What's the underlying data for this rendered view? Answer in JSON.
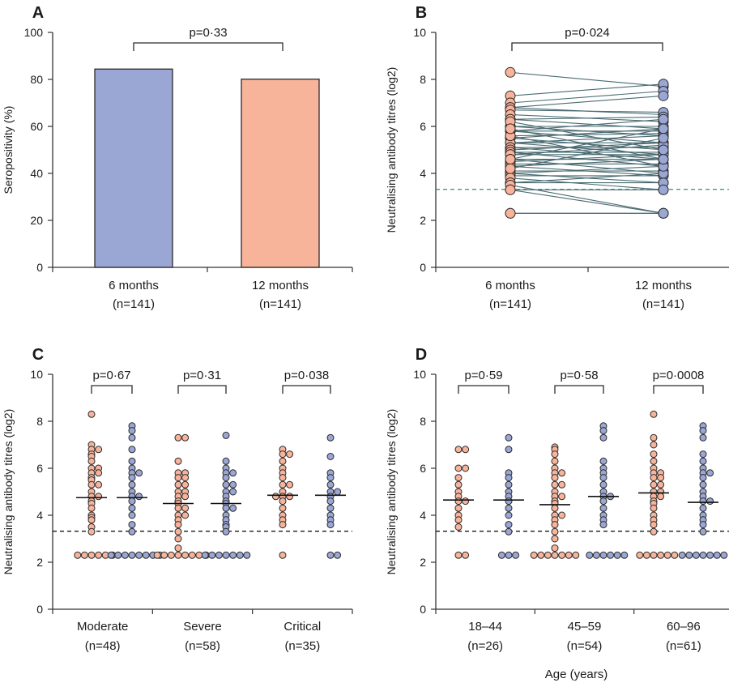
{
  "colors": {
    "blue": "#9aa6d3",
    "salmon": "#f8b39b",
    "line": "#4a6b72",
    "dash": "#3d8a6e",
    "axis": "#333333",
    "stroke": "#2b2b2b"
  },
  "chart_data": [
    {
      "panel": "A",
      "type": "bar",
      "ylabel": "Seropositivity (%)",
      "ylim": [
        0,
        100
      ],
      "yticks": [
        "0",
        "20",
        "40",
        "60",
        "80",
        "100"
      ],
      "categories": [
        {
          "name": "6 months",
          "n": "(n=141)",
          "value": 84.4,
          "color": "blue"
        },
        {
          "name": "12 months",
          "n": "(n=141)",
          "value": 80.1,
          "color": "salmon"
        }
      ],
      "pvalues": [
        "p=0·33"
      ]
    },
    {
      "panel": "B",
      "type": "line",
      "ylabel": "Neutralising antibody titres (log2)",
      "ylim": [
        0,
        10
      ],
      "yticks": [
        "0",
        "2",
        "4",
        "6",
        "8",
        "10"
      ],
      "threshold": 3.32,
      "categories": [
        {
          "name": "6 months",
          "n": "(n=141)",
          "color": "salmon"
        },
        {
          "name": "12 months",
          "n": "(n=141)",
          "color": "blue"
        }
      ],
      "pvalues": [
        "p=0·024"
      ],
      "pairs": [
        [
          8.3,
          7.7
        ],
        [
          7.3,
          7.8
        ],
        [
          7.0,
          7.5
        ],
        [
          6.8,
          7.3
        ],
        [
          6.8,
          6.5
        ],
        [
          6.7,
          6.6
        ],
        [
          6.5,
          6.2
        ],
        [
          6.3,
          6.4
        ],
        [
          6.3,
          5.9
        ],
        [
          6.0,
          6.0
        ],
        [
          6.0,
          5.6
        ],
        [
          5.8,
          5.8
        ],
        [
          5.8,
          5.3
        ],
        [
          5.8,
          6.3
        ],
        [
          5.6,
          5.7
        ],
        [
          5.5,
          5.0
        ],
        [
          5.5,
          5.9
        ],
        [
          5.3,
          5.3
        ],
        [
          5.3,
          4.8
        ],
        [
          5.3,
          5.6
        ],
        [
          5.1,
          5.1
        ],
        [
          5.1,
          4.6
        ],
        [
          5.0,
          5.3
        ],
        [
          4.9,
          4.9
        ],
        [
          4.9,
          4.3
        ],
        [
          4.8,
          4.8
        ],
        [
          4.8,
          5.2
        ],
        [
          4.6,
          4.6
        ],
        [
          4.6,
          4.0
        ],
        [
          4.5,
          4.8
        ],
        [
          4.4,
          4.4
        ],
        [
          4.3,
          3.9
        ],
        [
          4.3,
          4.6
        ],
        [
          4.1,
          4.1
        ],
        [
          4.0,
          3.6
        ],
        [
          4.0,
          4.3
        ],
        [
          3.9,
          3.9
        ],
        [
          3.8,
          3.3
        ],
        [
          3.6,
          3.6
        ],
        [
          3.6,
          4.0
        ],
        [
          3.5,
          2.3
        ],
        [
          3.3,
          3.3
        ],
        [
          3.3,
          2.3
        ],
        [
          2.3,
          2.3
        ],
        [
          2.3,
          2.3
        ],
        [
          5.6,
          4.3
        ],
        [
          4.6,
          5.9
        ],
        [
          6.2,
          5.0
        ],
        [
          4.2,
          5.5
        ],
        [
          5.9,
          4.6
        ]
      ]
    },
    {
      "panel": "C",
      "type": "scatter",
      "ylabel": "Neutralising antibody titres (log2)",
      "ylim": [
        0,
        10
      ],
      "yticks": [
        "0",
        "2",
        "4",
        "6",
        "8",
        "10"
      ],
      "threshold": 3.32,
      "groups": [
        {
          "name": "Moderate",
          "n": "(n=48)",
          "p": "p=0·67",
          "medians": [
            4.75,
            4.75
          ],
          "a": [
            8.3,
            7.0,
            6.8,
            6.8,
            6.6,
            6.5,
            6.3,
            6.0,
            6.0,
            5.8,
            5.8,
            5.6,
            5.5,
            5.3,
            5.3,
            5.0,
            4.8,
            4.8,
            4.6,
            4.5,
            4.3,
            4.0,
            3.9,
            3.8,
            3.5,
            3.3,
            2.3,
            2.3,
            2.3,
            2.3,
            2.3,
            2.3
          ],
          "b": [
            7.8,
            7.6,
            7.3,
            6.8,
            6.3,
            6.0,
            5.8,
            5.8,
            5.6,
            5.3,
            5.0,
            4.8,
            4.8,
            4.6,
            4.3,
            4.0,
            3.6,
            3.3,
            2.3,
            2.3,
            2.3,
            2.3,
            2.3,
            2.3,
            2.3,
            2.3
          ]
        },
        {
          "name": "Severe",
          "n": "(n=58)",
          "p": "p=0·31",
          "medians": [
            4.5,
            4.5
          ],
          "a": [
            7.3,
            7.3,
            6.3,
            5.8,
            5.8,
            5.6,
            5.6,
            5.3,
            5.3,
            5.0,
            5.0,
            4.8,
            4.8,
            4.6,
            4.5,
            4.3,
            4.3,
            4.0,
            4.0,
            3.8,
            3.6,
            3.3,
            3.0,
            2.6,
            2.3,
            2.3,
            2.3,
            2.3,
            2.3,
            2.3,
            2.3,
            2.3
          ],
          "b": [
            7.4,
            6.3,
            6.0,
            5.8,
            5.8,
            5.6,
            5.3,
            5.3,
            5.0,
            5.0,
            4.8,
            4.6,
            4.5,
            4.3,
            4.3,
            4.0,
            3.8,
            3.6,
            3.5,
            3.3,
            2.3,
            2.3,
            2.3,
            2.3,
            2.3,
            2.3,
            2.3
          ]
        },
        {
          "name": "Critical",
          "n": "(n=35)",
          "p": "p=0·038",
          "medians": [
            4.85,
            4.85
          ],
          "a": [
            6.8,
            6.6,
            6.6,
            6.3,
            6.0,
            5.8,
            5.6,
            5.3,
            5.3,
            5.0,
            4.8,
            4.8,
            4.8,
            4.6,
            4.3,
            4.0,
            3.8,
            3.6,
            2.3
          ],
          "b": [
            7.3,
            6.5,
            5.8,
            5.6,
            5.3,
            5.0,
            5.0,
            4.8,
            4.6,
            4.3,
            4.0,
            3.8,
            3.6,
            2.3,
            2.3
          ]
        }
      ]
    },
    {
      "panel": "D",
      "type": "scatter",
      "ylabel": "Neutralising antibody titres (log2)",
      "xlabel": "Age (years)",
      "ylim": [
        0,
        10
      ],
      "yticks": [
        "0",
        "2",
        "4",
        "6",
        "8",
        "10"
      ],
      "threshold": 3.32,
      "groups": [
        {
          "name": "18–44",
          "n": "(n=26)",
          "p": "p=0·59",
          "medians": [
            4.65,
            4.65
          ],
          "a": [
            6.8,
            6.8,
            6.0,
            6.0,
            5.6,
            5.3,
            5.0,
            4.8,
            4.6,
            4.6,
            4.3,
            4.0,
            3.8,
            3.5,
            2.3,
            2.3
          ],
          "b": [
            7.3,
            6.8,
            5.8,
            5.6,
            5.3,
            5.0,
            4.8,
            4.6,
            4.3,
            4.0,
            3.6,
            3.3,
            2.3,
            2.3,
            2.3
          ]
        },
        {
          "name": "45–59",
          "n": "(n=54)",
          "p": "p=0·58",
          "medians": [
            4.45,
            4.8
          ],
          "a": [
            6.9,
            6.8,
            6.6,
            6.3,
            6.0,
            5.8,
            5.8,
            5.6,
            5.3,
            5.3,
            5.0,
            4.8,
            4.8,
            4.6,
            4.5,
            4.3,
            4.0,
            4.0,
            3.8,
            3.6,
            3.3,
            3.0,
            2.6,
            2.3,
            2.3,
            2.3,
            2.3,
            2.3,
            2.3,
            2.3
          ],
          "b": [
            7.8,
            7.6,
            7.3,
            6.3,
            6.0,
            5.8,
            5.6,
            5.3,
            5.0,
            4.8,
            4.8,
            4.6,
            4.3,
            4.0,
            3.8,
            3.6,
            2.3,
            2.3,
            2.3,
            2.3,
            2.3,
            2.3
          ]
        },
        {
          "name": "60–96",
          "n": "(n=61)",
          "p": "p=0·0008",
          "medians": [
            4.95,
            4.55
          ],
          "a": [
            8.3,
            7.3,
            7.0,
            6.6,
            6.3,
            6.0,
            5.8,
            5.8,
            5.6,
            5.6,
            5.3,
            5.3,
            5.0,
            5.0,
            4.8,
            4.8,
            4.6,
            4.5,
            4.3,
            4.0,
            3.8,
            3.6,
            3.3,
            2.3,
            2.3,
            2.3,
            2.3,
            2.3,
            2.3
          ],
          "b": [
            7.8,
            7.6,
            7.3,
            6.6,
            6.3,
            6.0,
            5.8,
            5.8,
            5.6,
            5.3,
            5.0,
            4.8,
            4.6,
            4.6,
            4.3,
            4.0,
            3.8,
            3.6,
            3.3,
            2.3,
            2.3,
            2.3,
            2.3,
            2.3,
            2.3,
            2.3
          ]
        }
      ]
    }
  ]
}
